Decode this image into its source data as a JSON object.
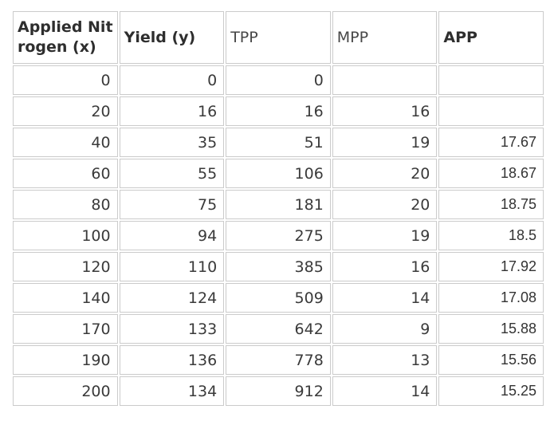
{
  "chart_data": {
    "type": "table",
    "columns": [
      "Applied Nitrogen (x)",
      "Yield (y)",
      "TPP",
      "MPP",
      "APP"
    ],
    "rows": [
      [
        0,
        0,
        0,
        null,
        null
      ],
      [
        20,
        16,
        16,
        16,
        null
      ],
      [
        40,
        35,
        51,
        19,
        17.67
      ],
      [
        60,
        55,
        106,
        20,
        18.67
      ],
      [
        80,
        75,
        181,
        20,
        18.75
      ],
      [
        100,
        94,
        275,
        19,
        18.5
      ],
      [
        120,
        110,
        385,
        16,
        17.92
      ],
      [
        140,
        124,
        509,
        14,
        17.08
      ],
      [
        170,
        133,
        642,
        9,
        15.88
      ],
      [
        190,
        136,
        778,
        13,
        15.56
      ],
      [
        200,
        134,
        912,
        14,
        15.25
      ]
    ],
    "legend": "none",
    "grid": "cell-borders"
  },
  "header": {
    "col0_line1": "Applied Nit",
    "col0_line2": "rogen (x)",
    "col1": "Yield (y)",
    "col2": "TPP",
    "col3": "MPP",
    "col4": "APP"
  },
  "colors": {
    "background": "#ffffff",
    "border": "#cbcbcb",
    "text": "#3a3a3a",
    "header_text": "#2e2e2e"
  }
}
